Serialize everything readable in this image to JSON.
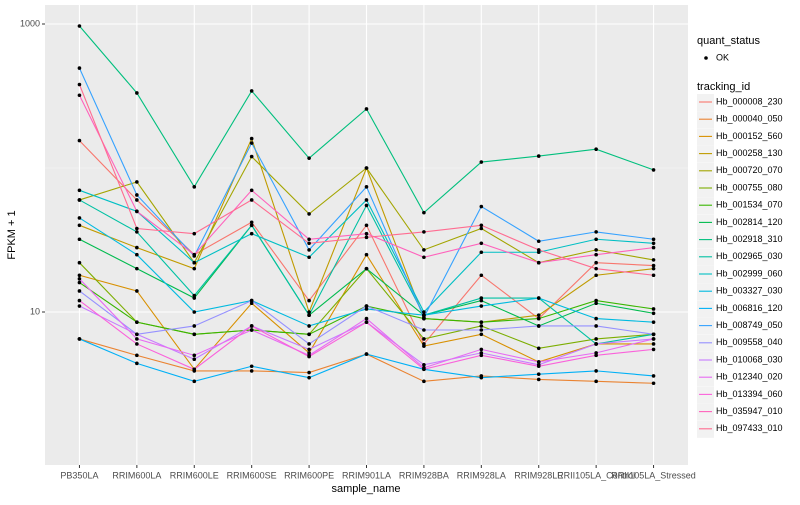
{
  "chart_data": {
    "type": "line",
    "x_label": "sample_name",
    "y_label": "FPKM + 1",
    "log_y": true,
    "grid": true,
    "categories": [
      "PB350LA",
      "RRIM600LA",
      "RRIM600LE",
      "RRIM600SE",
      "RRIM600PE",
      "RRIM901LA",
      "RRIM928BA",
      "RRIM928LA",
      "RRIM928LE",
      "RRII105LA_Control",
      "RRII105LA_Stressed"
    ],
    "ylim": [
      0.866,
      1355
    ],
    "yticks": [
      10,
      1000
    ],
    "point_legend": {
      "title": "quant_status",
      "labels": [
        "OK"
      ]
    },
    "legend_title": "tracking_id",
    "legend_position": "right",
    "series": [
      {
        "name": "Hb_000008_230",
        "color": "#F8766D",
        "values": [
          155,
          60,
          25,
          42,
          12,
          40,
          6,
          18,
          9,
          22,
          21
        ]
      },
      {
        "name": "Hb_000040_050",
        "color": "#EA8331",
        "values": [
          6.5,
          5,
          3.9,
          3.9,
          3.8,
          5.1,
          3.3,
          3.6,
          3.4,
          3.3,
          3.2
        ]
      },
      {
        "name": "Hb_000152_560",
        "color": "#D89000",
        "values": [
          18,
          14,
          4,
          11.5,
          5.2,
          25,
          5.8,
          7,
          4.5,
          6,
          6
        ]
      },
      {
        "name": "Hb_000258_130",
        "color": "#C09B00",
        "values": [
          40,
          28,
          20,
          160,
          10,
          100,
          9,
          8.5,
          9.5,
          18,
          20
        ]
      },
      {
        "name": "Hb_000720_070",
        "color": "#A3A500",
        "values": [
          60,
          80,
          22,
          120,
          48,
          100,
          27,
          38,
          22,
          27,
          23
        ]
      },
      {
        "name": "Hb_000755_080",
        "color": "#7CAE00",
        "values": [
          22,
          8.5,
          7,
          7.5,
          7,
          20,
          6.5,
          8,
          5.6,
          6.5,
          7
        ]
      },
      {
        "name": "Hb_001534_070",
        "color": "#39B600",
        "values": [
          16,
          8.5,
          7,
          7.5,
          7,
          11,
          9,
          8.5,
          9,
          12,
          10.5
        ]
      },
      {
        "name": "Hb_002814_120",
        "color": "#00BB4E",
        "values": [
          32,
          20,
          12.5,
          40,
          9.5,
          20,
          9.5,
          12,
          8,
          11.5,
          9.8
        ]
      },
      {
        "name": "Hb_002918_310",
        "color": "#00BF7D",
        "values": [
          968,
          332,
          74,
          343,
          117,
          257,
          49,
          110,
          121,
          135,
          97
        ]
      },
      {
        "name": "Hb_002965_030",
        "color": "#00C1A3",
        "values": [
          60,
          36,
          13,
          40,
          9.5,
          55,
          9.5,
          12.5,
          12.5,
          6,
          7
        ]
      },
      {
        "name": "Hb_002999_060",
        "color": "#00BFC4",
        "values": [
          70,
          50,
          22,
          35,
          24,
          60,
          10,
          26,
          26,
          32,
          30
        ]
      },
      {
        "name": "Hb_003327_030",
        "color": "#00BAE0",
        "values": [
          45,
          25,
          10,
          12,
          8,
          10.5,
          9.5,
          11,
          12.5,
          9,
          8.5
        ]
      },
      {
        "name": "Hb_006816_120",
        "color": "#00B0F6",
        "values": [
          6.5,
          4.4,
          3.3,
          4.2,
          3.5,
          5.1,
          4,
          3.5,
          3.7,
          3.9,
          3.6
        ]
      },
      {
        "name": "Hb_008749_050",
        "color": "#35A2FF",
        "values": [
          494,
          65,
          24.5,
          149,
          27,
          74,
          9.2,
          54,
          31,
          36,
          32
        ]
      },
      {
        "name": "Hb_009558_040",
        "color": "#9590FF",
        "values": [
          14,
          7,
          8,
          12,
          6,
          11,
          7.5,
          7.5,
          8,
          8,
          7
        ]
      },
      {
        "name": "Hb_010068_030",
        "color": "#C77CFF",
        "values": [
          11,
          7,
          4.7,
          8,
          5.5,
          8.5,
          4.3,
          5.2,
          4.3,
          6,
          6.5
        ]
      },
      {
        "name": "Hb_012340_020",
        "color": "#E76BF3",
        "values": [
          17,
          6.5,
          5,
          7.5,
          5,
          9,
          4.1,
          5.5,
          4.5,
          5.2,
          6.5
        ]
      },
      {
        "name": "Hb_013394_060",
        "color": "#FA62DB",
        "values": [
          12,
          6,
          4,
          8,
          4.9,
          8.5,
          4,
          5,
          4.2,
          5,
          5.5
        ]
      },
      {
        "name": "Hb_035947_010",
        "color": "#FF62BC",
        "values": [
          320,
          50,
          25,
          70,
          32,
          35,
          24,
          30,
          22,
          25,
          28
        ]
      },
      {
        "name": "Hb_097433_010",
        "color": "#FF6C91",
        "values": [
          380,
          38,
          35,
          60,
          30,
          33,
          36,
          40,
          27,
          20,
          18
        ]
      }
    ]
  }
}
